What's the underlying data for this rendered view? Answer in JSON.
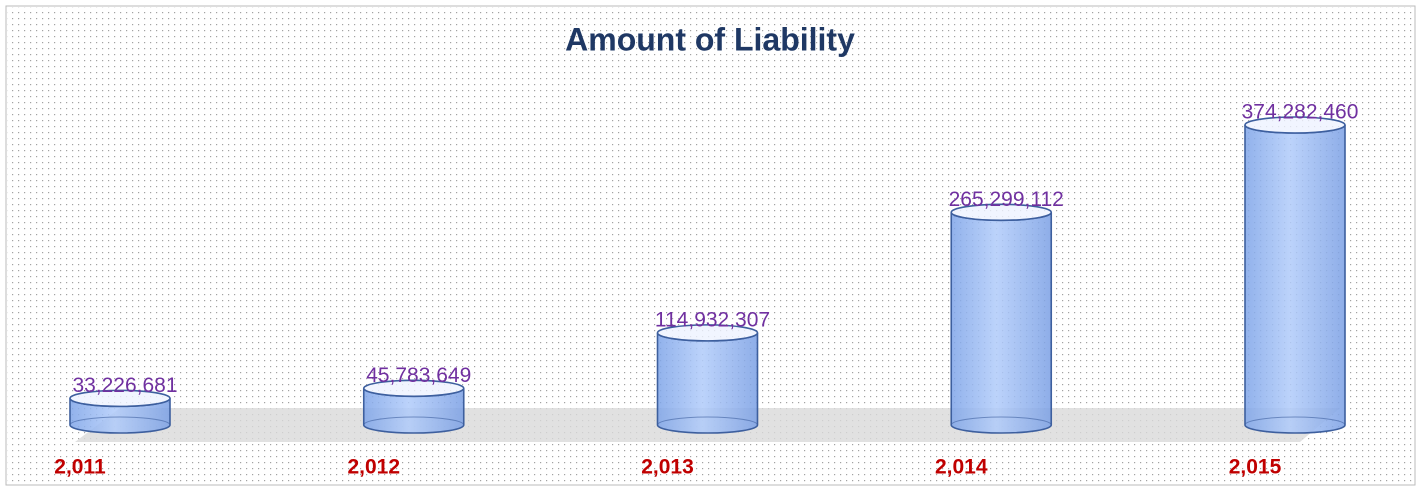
{
  "chart_data": {
    "type": "cylinder",
    "title": "Amount of Liability",
    "categories": [
      "2,011",
      "2,012",
      "2,013",
      "2,014",
      "2,015"
    ],
    "values": [
      33226681,
      45783649,
      114932307,
      265299112,
      374282460
    ],
    "value_labels": [
      "33,226,681",
      "45,783,649",
      "114,932,307",
      "265,299,112",
      "374,282,460"
    ],
    "color": "#8fb4f2"
  }
}
